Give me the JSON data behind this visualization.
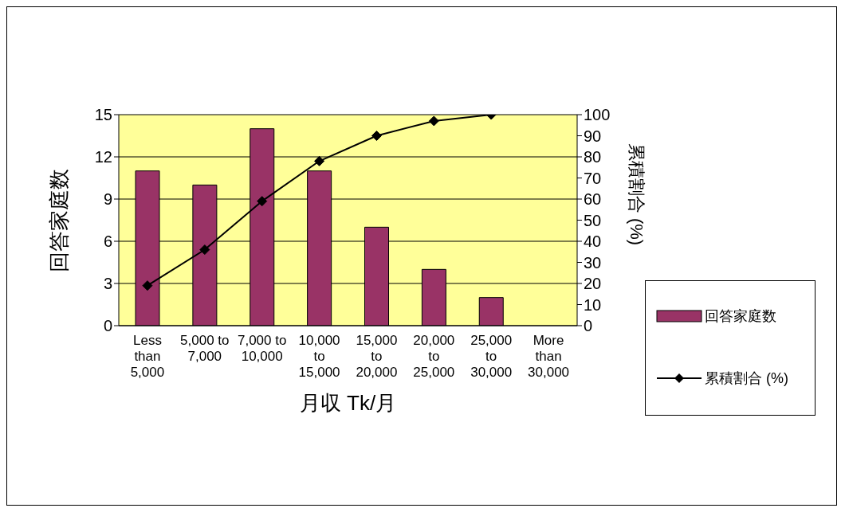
{
  "chart_data": {
    "type": "bar",
    "xlabel": "月収 Tk/月",
    "ylabel": "回答家庭数",
    "y2label": "累積割合 (%)",
    "categories": [
      "Less than 5,000",
      "5,000 to 7,000",
      "7,000 to 10,000",
      "10,000 to 15,000",
      "15,000 to 20,000",
      "20,000 to 25,000",
      "25,000 to 30,000",
      "More than 30,000"
    ],
    "series": [
      {
        "name": "回答家庭数",
        "color": "#993366",
        "values": [
          11,
          10,
          14,
          11,
          7,
          4,
          2,
          0
        ]
      },
      {
        "name": "累積割合 (%)",
        "type": "line",
        "axis": "y2",
        "color": "#000000",
        "marker": "diamond",
        "values": [
          19,
          36,
          59,
          78,
          90,
          97,
          100,
          null
        ]
      }
    ],
    "ylim": [
      0,
      15
    ],
    "yticks": [
      0,
      3,
      6,
      9,
      12,
      15
    ],
    "y2lim": [
      0,
      100
    ],
    "y2ticks": [
      0,
      10,
      20,
      30,
      40,
      50,
      60,
      70,
      80,
      90,
      100
    ],
    "grid": "y",
    "legend": "right"
  }
}
